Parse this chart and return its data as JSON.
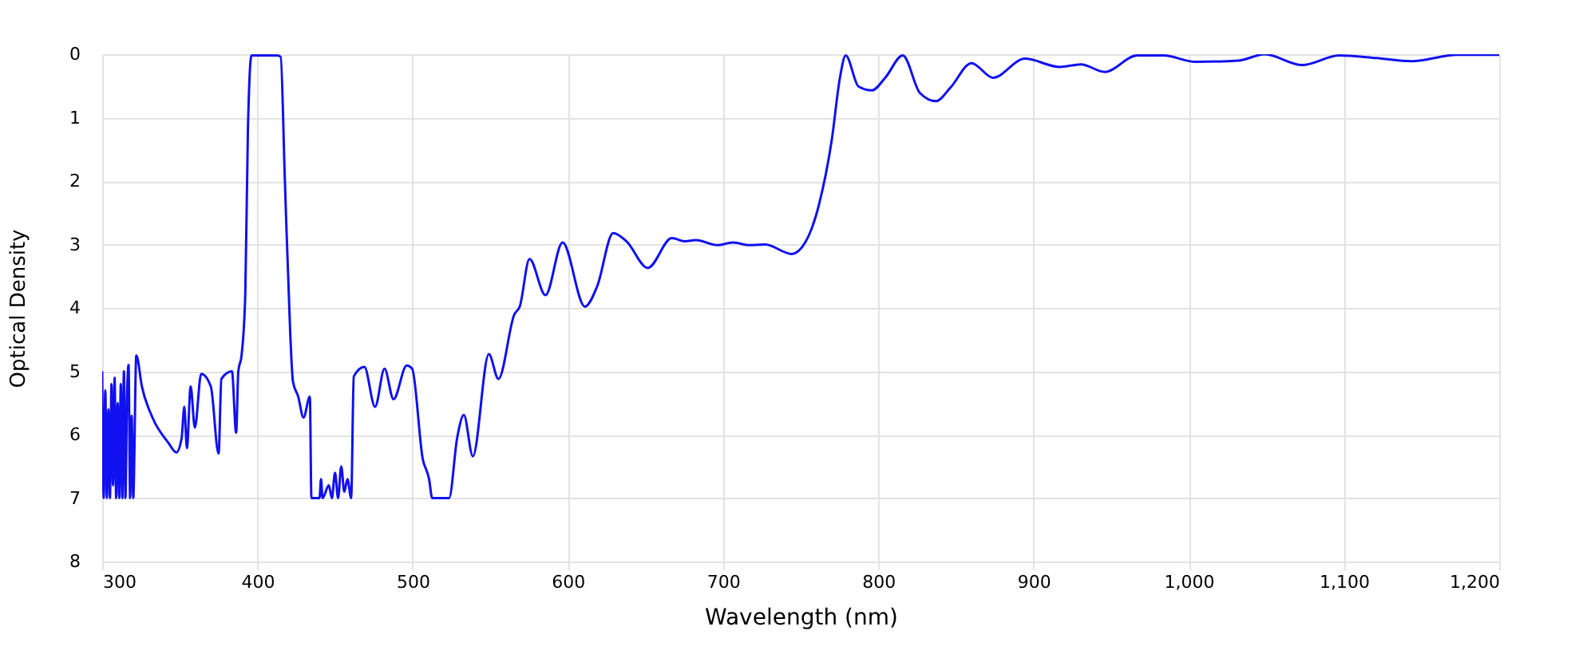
{
  "chart_data": {
    "type": "line",
    "xlabel": "Wavelength (nm)",
    "ylabel": "Optical Density",
    "xlim": [
      300,
      1200
    ],
    "ylim": [
      8,
      0
    ],
    "xticks": [
      300,
      400,
      500,
      600,
      700,
      800,
      900,
      {
        "value": 1000,
        "label": "1,000"
      },
      {
        "value": 1100,
        "label": "1,100"
      },
      {
        "value": 1200,
        "label": "1,200"
      }
    ],
    "yticks": [
      0,
      1,
      2,
      3,
      4,
      5,
      6,
      7,
      8
    ],
    "grid": true,
    "line_style": "solid",
    "marker": "none",
    "series": [
      {
        "color": "#1010f0",
        "x": [
          300,
          301,
          302,
          303,
          304,
          305,
          306,
          307,
          308,
          309,
          310,
          311,
          312,
          313,
          314,
          315,
          316,
          317,
          318,
          319,
          320,
          322,
          325.6,
          332.4,
          342.7,
          347.8,
          351.2,
          352.9,
          354.6,
          357,
          359.7,
          363.8,
          370,
          375,
          376.8,
          383.6,
          386.3,
          387.7,
          389.8,
          392.2,
          393.9,
          396.2,
          412.6,
          415,
          417.7,
          421.2,
          422.9,
          426.3,
          429.7,
          433.8,
          434.8,
          440,
          441,
          442,
          446,
          448,
          450,
          452,
          454,
          456,
          458,
          460.4,
          462.1,
          468.9,
          475.8,
          481.9,
          487.7,
          496.2,
          499.7,
          506.5,
          510.6,
          512.6,
          523.5,
          528.7,
          533,
          538.8,
          549.1,
          555.3,
          565.6,
          569,
          575.3,
          585.6,
          596.6,
          611,
          618.9,
          629.2,
          637.8,
          651.5,
          667,
          675.6,
          682.5,
          696.2,
          706.5,
          716.8,
          727.1,
          744.3,
          752.9,
          761.5,
          770.1,
          775.3,
          779,
          787.3,
          795.9,
          804.5,
          815.8,
          826.8,
          837.1,
          846.4,
          860.1,
          873.9,
          894.5,
          916.8,
          930.6,
          946,
          966.7,
          983.8,
          1004.5,
          1032,
          1049,
          1073,
          1097,
          1121,
          1143.6,
          1172.9,
          1200
        ],
        "values": [
          5.0,
          7,
          5.3,
          7,
          5.6,
          7,
          5.2,
          6.8,
          5.1,
          7,
          5.5,
          7,
          5.2,
          7,
          5.0,
          7,
          5.4,
          4.9,
          7,
          5.7,
          7,
          4.75,
          5.24,
          5.73,
          6.13,
          6.28,
          6.05,
          5.56,
          6.21,
          5.24,
          5.89,
          5.04,
          5.24,
          6.3,
          5.12,
          5.0,
          5.97,
          5.0,
          4.75,
          3.78,
          1.18,
          0.02,
          0.02,
          0.04,
          1.99,
          4.43,
          5.16,
          5.4,
          5.73,
          5.4,
          7,
          7,
          6.7,
          7,
          6.8,
          7,
          6.6,
          7,
          6.5,
          6.9,
          6.7,
          7,
          5.08,
          4.93,
          5.56,
          4.96,
          5.44,
          4.91,
          4.96,
          6.38,
          6.7,
          7,
          7,
          6.05,
          5.69,
          6.34,
          4.73,
          5.12,
          4.1,
          3.98,
          3.23,
          3.8,
          2.97,
          3.98,
          3.66,
          2.82,
          2.95,
          3.37,
          2.9,
          2.95,
          2.93,
          3.01,
          2.97,
          3.01,
          3.0,
          3.15,
          2.97,
          2.4,
          1.34,
          0.37,
          0.02,
          0.51,
          0.57,
          0.37,
          0.02,
          0.61,
          0.74,
          0.53,
          0.14,
          0.37,
          0.07,
          0.2,
          0.16,
          0.28,
          0.02,
          0.02,
          0.12,
          0.1,
          0.0,
          0.17,
          0.02,
          0.06,
          0.11,
          0.01,
          0.01
        ]
      }
    ]
  }
}
